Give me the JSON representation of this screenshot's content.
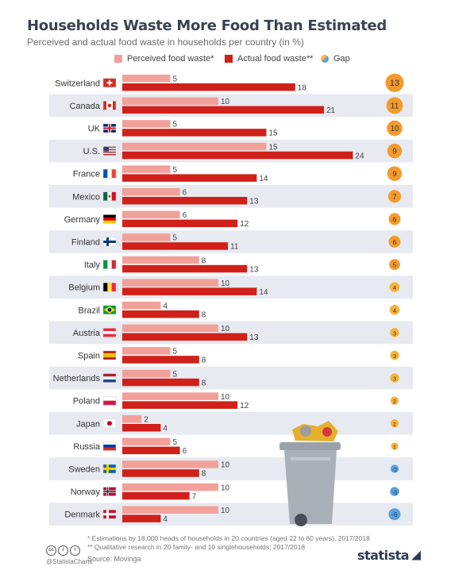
{
  "header": {
    "title": "Households Waste More Food Than Estimated",
    "subtitle": "Perceived and actual food waste in households per country (in %)"
  },
  "legend": {
    "perceived": "Perceived food waste*",
    "actual": "Actual food waste**",
    "gap": "Gap"
  },
  "colors": {
    "perceived": "#f2a09a",
    "actual": "#d0201a",
    "row_stripe": "#e8eaf1",
    "gap_large": "#f59a2a",
    "gap_small": "#f7b23b",
    "gap_negative": "#5aa0e0"
  },
  "chart_data": {
    "type": "bar",
    "title": "Households Waste More Food Than Estimated",
    "subtitle": "Perceived and actual food waste in households per country (in %)",
    "categories": [
      "Switzerland",
      "Canada",
      "UK",
      "U.S.",
      "France",
      "Mexico",
      "Germany",
      "Finland",
      "Italy",
      "Belgium",
      "Brazil",
      "Austria",
      "Spain",
      "Netherlands",
      "Poland",
      "Japan",
      "Russia",
      "Sweden",
      "Norway",
      "Denmark"
    ],
    "series": [
      {
        "name": "Perceived food waste*",
        "values": [
          5,
          10,
          5,
          15,
          5,
          6,
          6,
          5,
          8,
          10,
          4,
          10,
          5,
          5,
          10,
          2,
          5,
          10,
          10,
          10
        ]
      },
      {
        "name": "Actual food waste**",
        "values": [
          18,
          21,
          15,
          24,
          14,
          13,
          12,
          11,
          13,
          14,
          8,
          13,
          8,
          8,
          12,
          4,
          6,
          8,
          7,
          4
        ]
      },
      {
        "name": "Gap",
        "values": [
          13,
          11,
          10,
          9,
          9,
          7,
          6,
          6,
          5,
          4,
          4,
          3,
          3,
          3,
          2,
          2,
          1,
          -2,
          -3,
          -6
        ]
      }
    ],
    "orientation": "horizontal",
    "legend_position": "top",
    "flags": [
      "ch",
      "ca",
      "uk",
      "us",
      "fr",
      "mx",
      "de",
      "fi",
      "it",
      "be",
      "br",
      "at",
      "es",
      "nl",
      "pl",
      "jp",
      "ru",
      "se",
      "no",
      "dk"
    ]
  },
  "footer": {
    "note1": "*   Estimations by 18,000 heads of households in 20 countries (aged 22 to 60 years), 2017/2018",
    "note2": "** Qualitative research in 20 family- and 10 singlehouseholds; 2017/2018",
    "source": "Source: Movinga",
    "handle": "@StatistaCharts",
    "brand": "statista"
  }
}
